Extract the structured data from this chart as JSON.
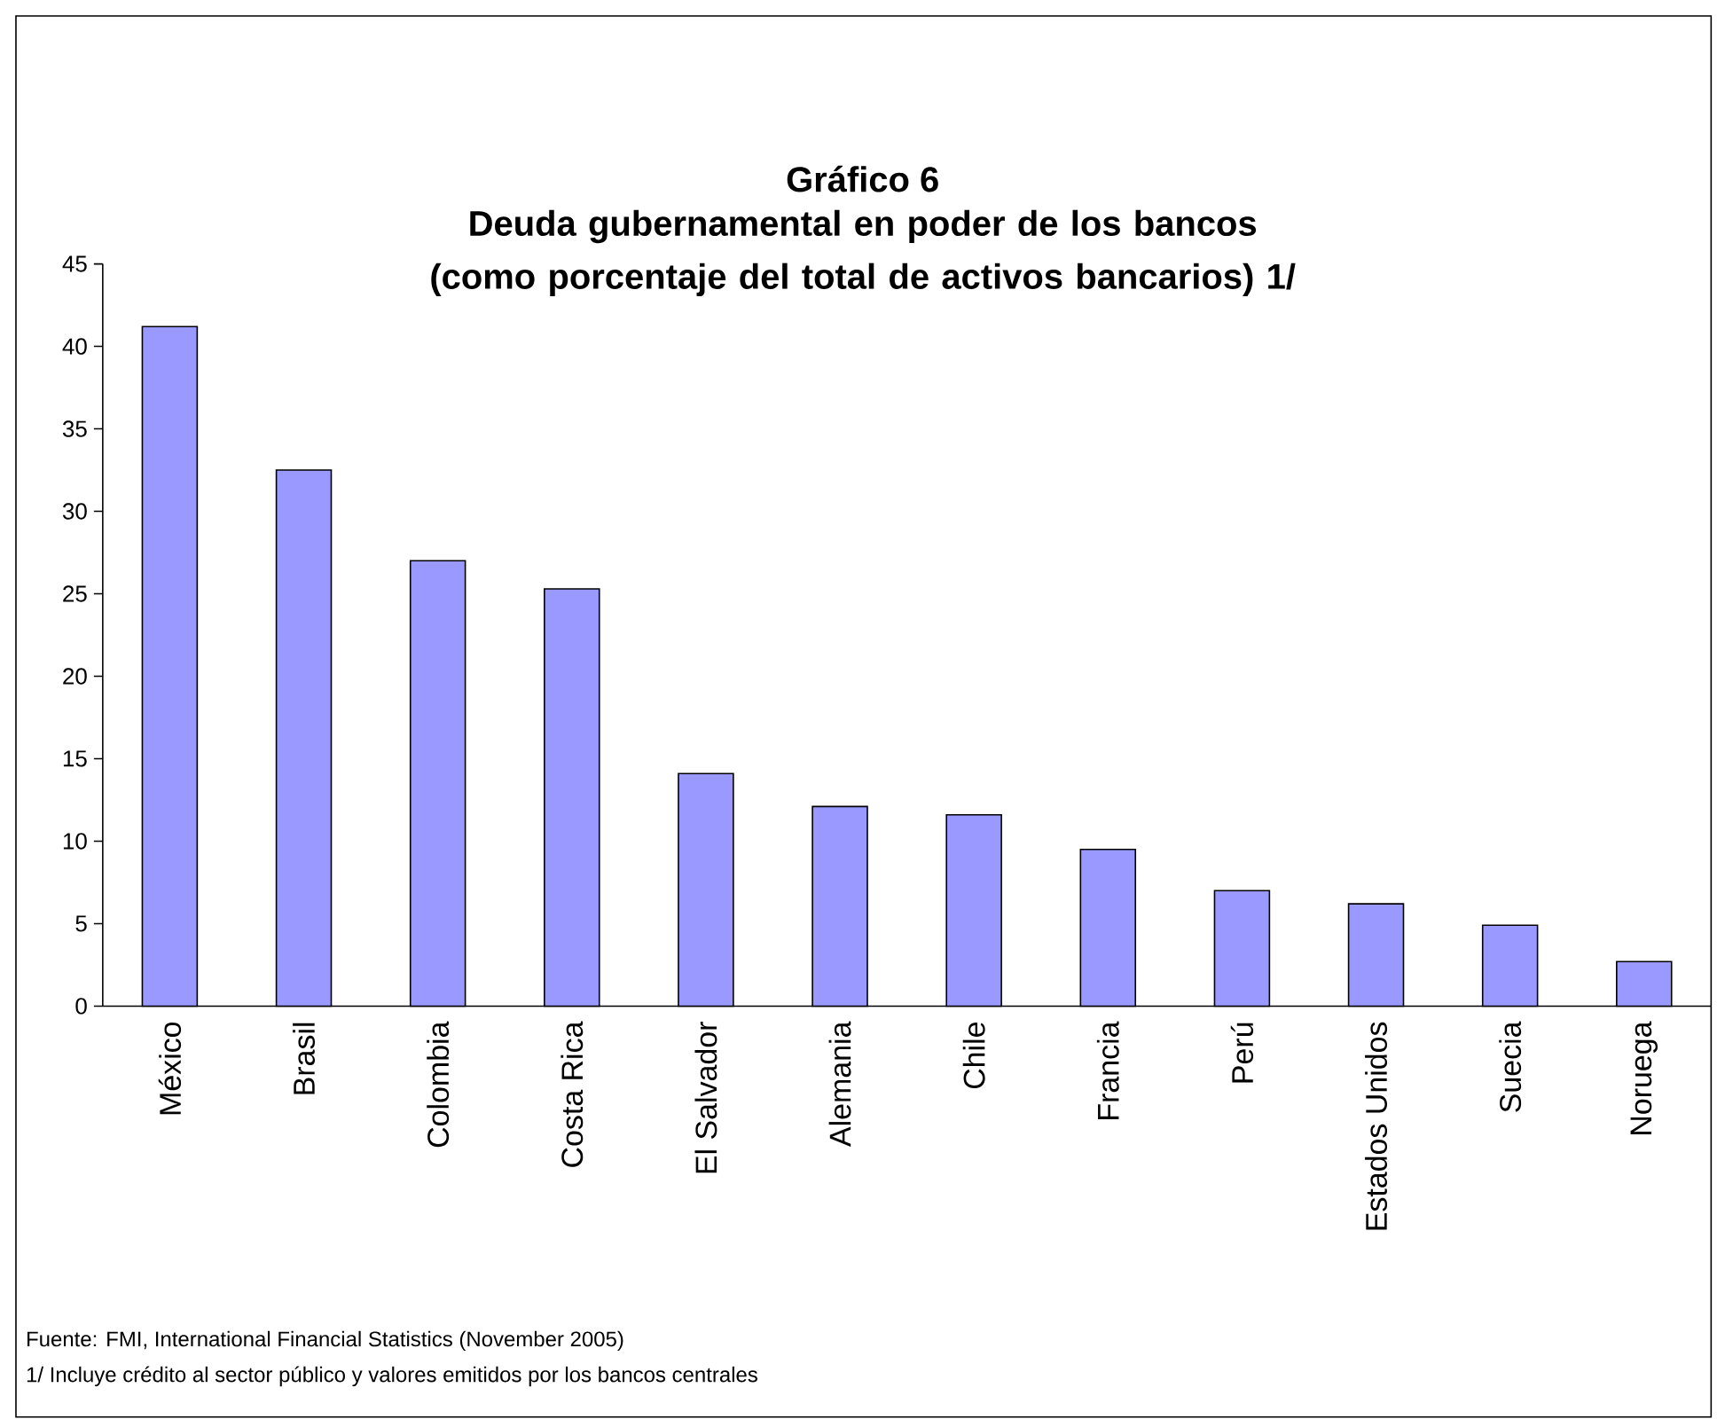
{
  "chart_data": {
    "type": "bar",
    "title": "Gráfico 6",
    "subtitle": "Deuda gubernamental en poder de los bancos (como porcentaje del total de activos bancarios) 1/",
    "categories": [
      "México",
      "Brasil",
      "Colombia",
      "Costa Rica",
      "El Salvador",
      "Alemania",
      "Chile",
      "Francia",
      "Perú",
      "Estados Unidos",
      "Suecia",
      "Noruega"
    ],
    "values": [
      41.2,
      32.5,
      27.0,
      25.3,
      14.1,
      12.1,
      11.6,
      9.5,
      7.0,
      6.2,
      4.9,
      2.7
    ],
    "color": "#9999ff",
    "ylim": [
      0,
      45
    ],
    "yticks": [
      0,
      5,
      10,
      15,
      20,
      25,
      30,
      35,
      40,
      45
    ],
    "annotations": [
      "Fuente: FMI, International Financial Statistics (November 2005)",
      "1/ Incluye crédito al sector público y valores emitidos por los bancos centrales"
    ]
  }
}
